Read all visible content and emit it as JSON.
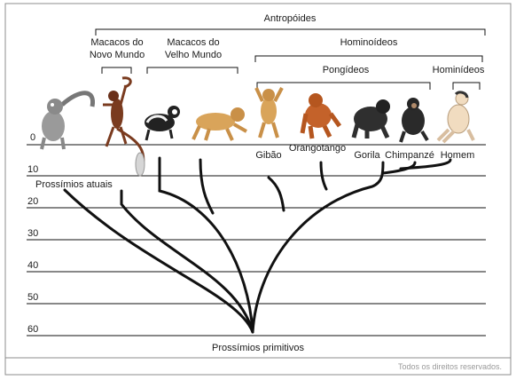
{
  "groups": {
    "antropoides": "Antropóides",
    "novo_mundo_line1": "Macacos do",
    "novo_mundo_line2": "Novo Mundo",
    "velho_mundo_line1": "Macacos do",
    "velho_mundo_line2": "Velho Mundo",
    "hominoideos": "Hominoídeos",
    "pongideos": "Pongídeos",
    "hominideos": "Hominídeos"
  },
  "species": {
    "gibao": "Gibão",
    "orangotango": "Orangotango",
    "gorila": "Gorila",
    "chimpanze": "Chimpanzé",
    "homem": "Homem",
    "prossimios_atuais": "Prossímios atuais",
    "prossimios_primitivos": "Prossímios primitivos"
  },
  "time_axis": {
    "ticks": [
      "0",
      "10",
      "20",
      "30",
      "40",
      "50",
      "60"
    ]
  },
  "footer": {
    "copyright": "Todos os direitos reservados."
  },
  "colors": {
    "line": "#111111",
    "frame": "#8c8c8c",
    "fur_gray": "#9a9a9a",
    "fur_brown": "#7a3b1f",
    "fur_orange": "#c4622a",
    "fur_tan": "#d9a45a",
    "fur_dark": "#2f2f2f",
    "skin": "#f1dcc0"
  },
  "icons": [
    "lemur-icon",
    "spider-monkey-icon",
    "colobus-icon",
    "macaque-icon",
    "gibbon-icon",
    "orangutan-icon",
    "gorilla-icon",
    "chimpanzee-icon",
    "human-icon"
  ]
}
